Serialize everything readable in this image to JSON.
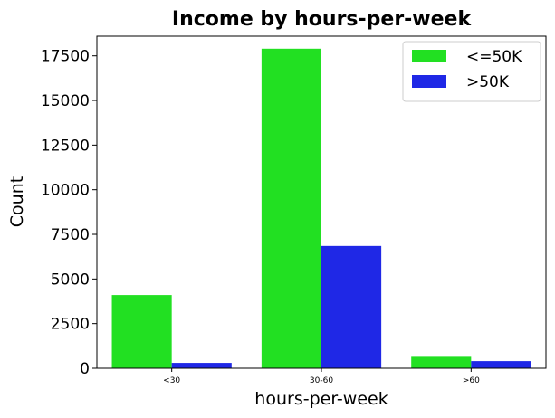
{
  "chart_data": {
    "type": "bar",
    "title": "Income by hours-per-week",
    "xlabel": "hours-per-week",
    "ylabel": "Count",
    "categories": [
      "<30",
      "30-60",
      ">60"
    ],
    "series": [
      {
        "name": "<=50K",
        "values": [
          4100,
          17900,
          640
        ],
        "color": "#22e022"
      },
      {
        "name": ">50K",
        "values": [
          300,
          6850,
          400
        ],
        "color": "#1f28e6"
      }
    ],
    "ylim": [
      0,
      18600
    ],
    "yticks": [
      0,
      2500,
      5000,
      7500,
      10000,
      12500,
      15000,
      17500
    ],
    "ytick_labels": [
      "0",
      "2500",
      "5000",
      "7500",
      "10000",
      "12500",
      "15000",
      "17500"
    ],
    "grid": false,
    "legend_position": "top-right"
  }
}
